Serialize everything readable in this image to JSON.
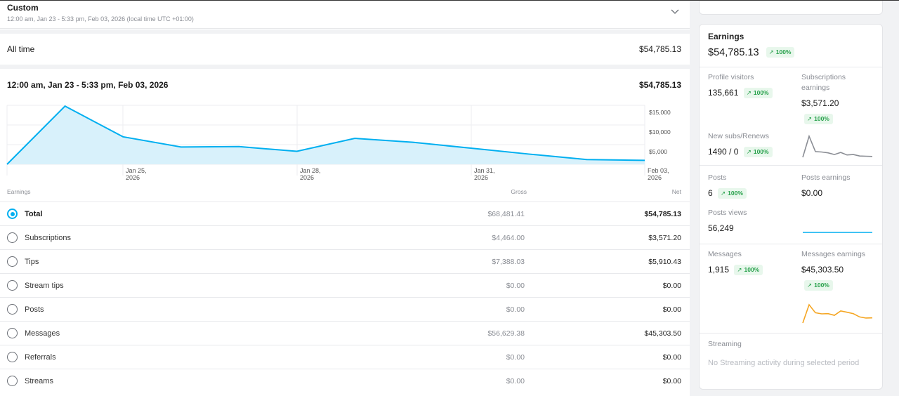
{
  "period": {
    "title": "Custom",
    "subtitle": "12:00 am, Jan 23 - 5:33 pm, Feb 03, 2026 (local time UTC +01:00)"
  },
  "all_time": {
    "label": "All time",
    "value": "$54,785.13"
  },
  "range": {
    "label": "12:00 am, Jan 23 - 5:33 pm, Feb 03, 2026",
    "value": "$54,785.13"
  },
  "chart_data": {
    "type": "area",
    "series": [
      {
        "values": [
          0,
          14800,
          7000,
          4400,
          4500,
          3300,
          6600,
          5600,
          4100,
          2600,
          1200,
          1000
        ]
      }
    ],
    "x_labels": [
      [
        "Jan 25,",
        "2026"
      ],
      [
        "Jan 28,",
        "2026"
      ],
      [
        "Jan 31,",
        "2026"
      ],
      [
        "Feb 03,",
        "2026"
      ]
    ],
    "y_ticks": [
      "$15,000",
      "$10,000",
      "$5,000"
    ],
    "y_tick_values": [
      15000,
      10000,
      5000
    ],
    "ylim": [
      0,
      15000
    ],
    "color": "#00aff0",
    "fill": "#d8f1fb",
    "grid": true
  },
  "table": {
    "headers": {
      "name": "Earnings",
      "gross": "Gross",
      "net": "Net"
    },
    "rows": [
      {
        "name": "Total",
        "gross": "$68,481.41",
        "net": "$54,785.13",
        "selected": true
      },
      {
        "name": "Subscriptions",
        "gross": "$4,464.00",
        "net": "$3,571.20"
      },
      {
        "name": "Tips",
        "gross": "$7,388.03",
        "net": "$5,910.43"
      },
      {
        "name": "Stream tips",
        "gross": "$0.00",
        "net": "$0.00"
      },
      {
        "name": "Posts",
        "gross": "$0.00",
        "net": "$0.00"
      },
      {
        "name": "Messages",
        "gross": "$56,629.38",
        "net": "$45,303.50"
      },
      {
        "name": "Referrals",
        "gross": "$0.00",
        "net": "$0.00"
      },
      {
        "name": "Streams",
        "gross": "$0.00",
        "net": "$0.00"
      }
    ]
  },
  "summary": {
    "title": "Earnings",
    "total": "$54,785.13",
    "total_change": "100%",
    "profile_visitors": {
      "label": "Profile visitors",
      "value": "135,661",
      "change": "100%"
    },
    "subscriptions_earnings": {
      "label": "Subscriptions earnings",
      "value": "$3,571.20",
      "change": "100%"
    },
    "new_subs": {
      "label": "New subs/Renews",
      "value": "1490 / 0",
      "change": "100%"
    },
    "posts": {
      "label": "Posts",
      "value": "6",
      "change": "100%"
    },
    "posts_earnings": {
      "label": "Posts earnings",
      "value": "$0.00"
    },
    "posts_views": {
      "label": "Posts views",
      "value": "56,249"
    },
    "messages": {
      "label": "Messages",
      "value": "1,915",
      "change": "100%"
    },
    "messages_earnings": {
      "label": "Messages earnings",
      "value": "$45,303.50",
      "change": "100%"
    },
    "streaming": {
      "label": "Streaming",
      "empty": "No Streaming activity during selected period"
    }
  },
  "sparklines": {
    "subscriptions": {
      "color": "#8a8d94",
      "values": [
        0,
        10,
        2.7,
        2.5,
        2.1,
        1.3,
        2.3,
        1.1,
        1.3,
        0.6,
        0.5,
        0.4
      ]
    },
    "posts": {
      "color": "#00aff0",
      "values": [
        0,
        0,
        0,
        0,
        0,
        0,
        0,
        0,
        0,
        0,
        0,
        0
      ]
    },
    "messages": {
      "color": "#f5a623",
      "values": [
        0,
        10,
        5.6,
        5,
        5.1,
        4.2,
        6.6,
        5.9,
        5.1,
        3.3,
        2.7,
        2.8
      ]
    }
  }
}
